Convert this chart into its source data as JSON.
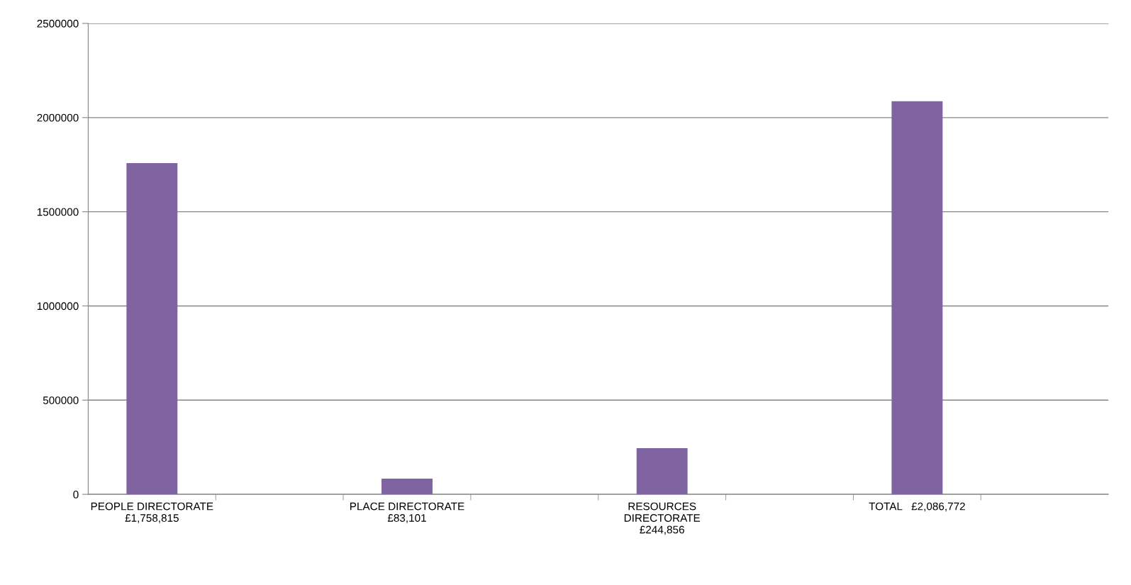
{
  "chart_data": {
    "type": "bar",
    "categories": [
      "PEOPLE DIRECTORATE\n£1,758,815",
      null,
      "PLACE DIRECTORATE\n£83,101",
      null,
      "RESOURCES\nDIRECTORATE\n£244,856",
      null,
      "TOTAL   £2,086,772",
      null
    ],
    "values": [
      1758815,
      null,
      83101,
      null,
      244856,
      null,
      2086772,
      null
    ],
    "color": "#8064a2",
    "ylim": [
      0,
      2500000
    ],
    "yticks": [
      0,
      500000,
      1000000,
      1500000,
      2000000,
      2500000
    ],
    "grid": "y",
    "legend": false
  }
}
